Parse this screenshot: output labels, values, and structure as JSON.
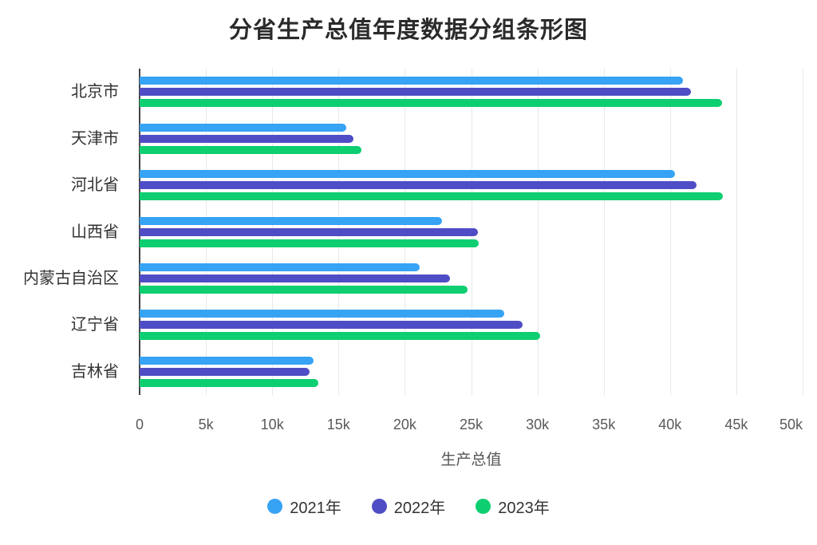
{
  "chart_data": {
    "type": "bar",
    "orientation": "horizontal",
    "title": "分省生产总值年度数据分组条形图",
    "xlabel": "生产总值",
    "ylabel": "",
    "categories": [
      "北京市",
      "天津市",
      "河北省",
      "山西省",
      "内蒙古自治区",
      "辽宁省",
      "吉林省"
    ],
    "series": [
      {
        "name": "2021年",
        "color": "#36a3f4",
        "values": [
          41000,
          15600,
          40400,
          22800,
          21100,
          27500,
          13100
        ]
      },
      {
        "name": "2022年",
        "color": "#4f4dc5",
        "values": [
          41600,
          16100,
          42000,
          25500,
          23400,
          28900,
          12800
        ]
      },
      {
        "name": "2023年",
        "color": "#0dce70",
        "values": [
          43900,
          16700,
          44000,
          25600,
          24700,
          30200,
          13500
        ]
      }
    ],
    "xlim": [
      0,
      50000
    ],
    "xtick_values": [
      0,
      5000,
      10000,
      15000,
      20000,
      25000,
      30000,
      35000,
      40000,
      45000,
      50000
    ],
    "xtick_labels": [
      "0",
      "5k",
      "10k",
      "15k",
      "20k",
      "25k",
      "30k",
      "35k",
      "40k",
      "45k",
      "50k"
    ],
    "grid": true,
    "gridline_color": "#e8e8e8",
    "axis_line_color": "#454545",
    "legend_position": "bottom"
  }
}
